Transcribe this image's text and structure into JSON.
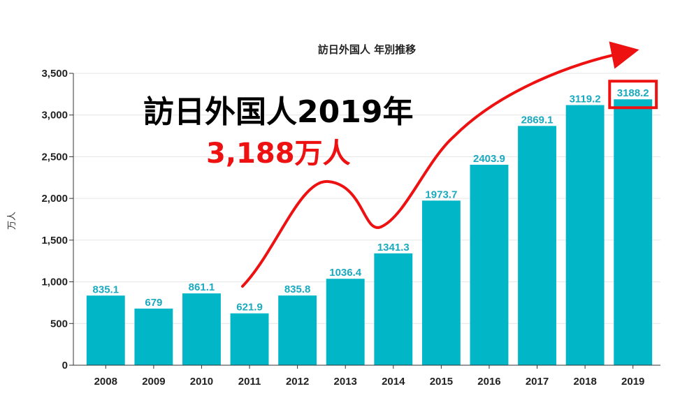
{
  "chart_data": {
    "type": "bar",
    "title": "訪日外国人 年別推移",
    "ylabel": "万人",
    "xlabel": "",
    "categories": [
      "2008",
      "2009",
      "2010",
      "2011",
      "2012",
      "2013",
      "2014",
      "2015",
      "2016",
      "2017",
      "2018",
      "2019"
    ],
    "values": [
      835.1,
      679,
      861.1,
      621.9,
      835.8,
      1036.4,
      1341.3,
      1973.7,
      2403.9,
      2869.1,
      3119.2,
      3188.2
    ],
    "data_labels": [
      "835.1",
      "679",
      "861.1",
      "621.9",
      "835.8",
      "1036.4",
      "1341.3",
      "1973.7",
      "2403.9",
      "2869.1",
      "3119.2",
      "3188.2"
    ],
    "ylim": [
      0,
      3500
    ],
    "yticks": [
      0,
      500,
      1000,
      1500,
      2000,
      2500,
      3000,
      3500
    ],
    "ytick_labels": [
      "0",
      "500",
      "1,000",
      "1,500",
      "2,000",
      "2,500",
      "3,000",
      "3,500"
    ],
    "grid": true,
    "legend": "none",
    "highlight_category": "2019"
  },
  "annotation": {
    "headline": "訪日外国人2019年",
    "value_text": "3,188万人"
  },
  "colors": {
    "bar": "#00b6c7",
    "data_label": "#1aa9bf",
    "accent_red": "#ee1111",
    "grid": "#e6e6e6",
    "axis": "#333333"
  }
}
